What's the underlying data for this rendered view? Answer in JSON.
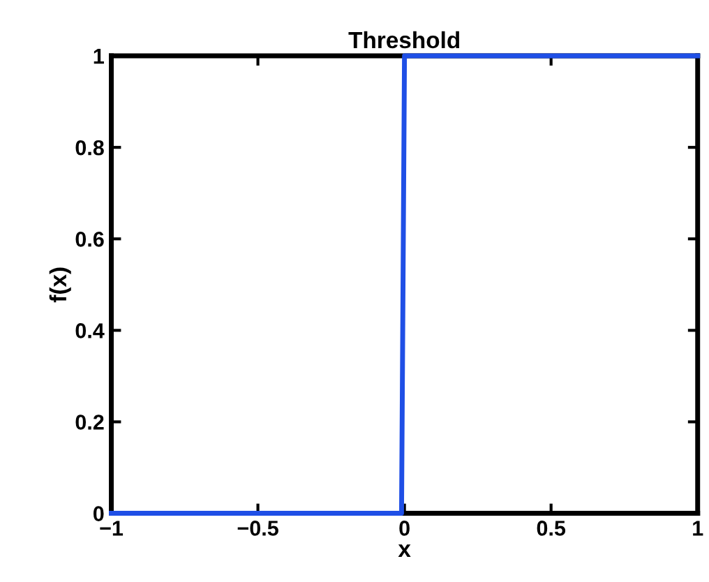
{
  "chart_data": {
    "type": "line",
    "title": "Threshold",
    "xlabel": "x",
    "ylabel": "f(x)",
    "x": [
      -1,
      -0.01,
      0,
      1
    ],
    "series": [
      {
        "color": "#1f4fe6",
        "values": [
          0,
          0,
          1,
          1
        ]
      }
    ],
    "xlim": [
      -1,
      1
    ],
    "ylim": [
      0,
      1
    ],
    "xticks": [
      {
        "value": -1,
        "label": "−1"
      },
      {
        "value": -0.5,
        "label": "−0.5"
      },
      0,
      0.5,
      1
    ],
    "yticks": [
      0,
      0.2,
      0.4,
      0.6,
      0.8,
      1
    ],
    "grid": false,
    "legend": false,
    "marker": "none",
    "line_style": "solid"
  }
}
